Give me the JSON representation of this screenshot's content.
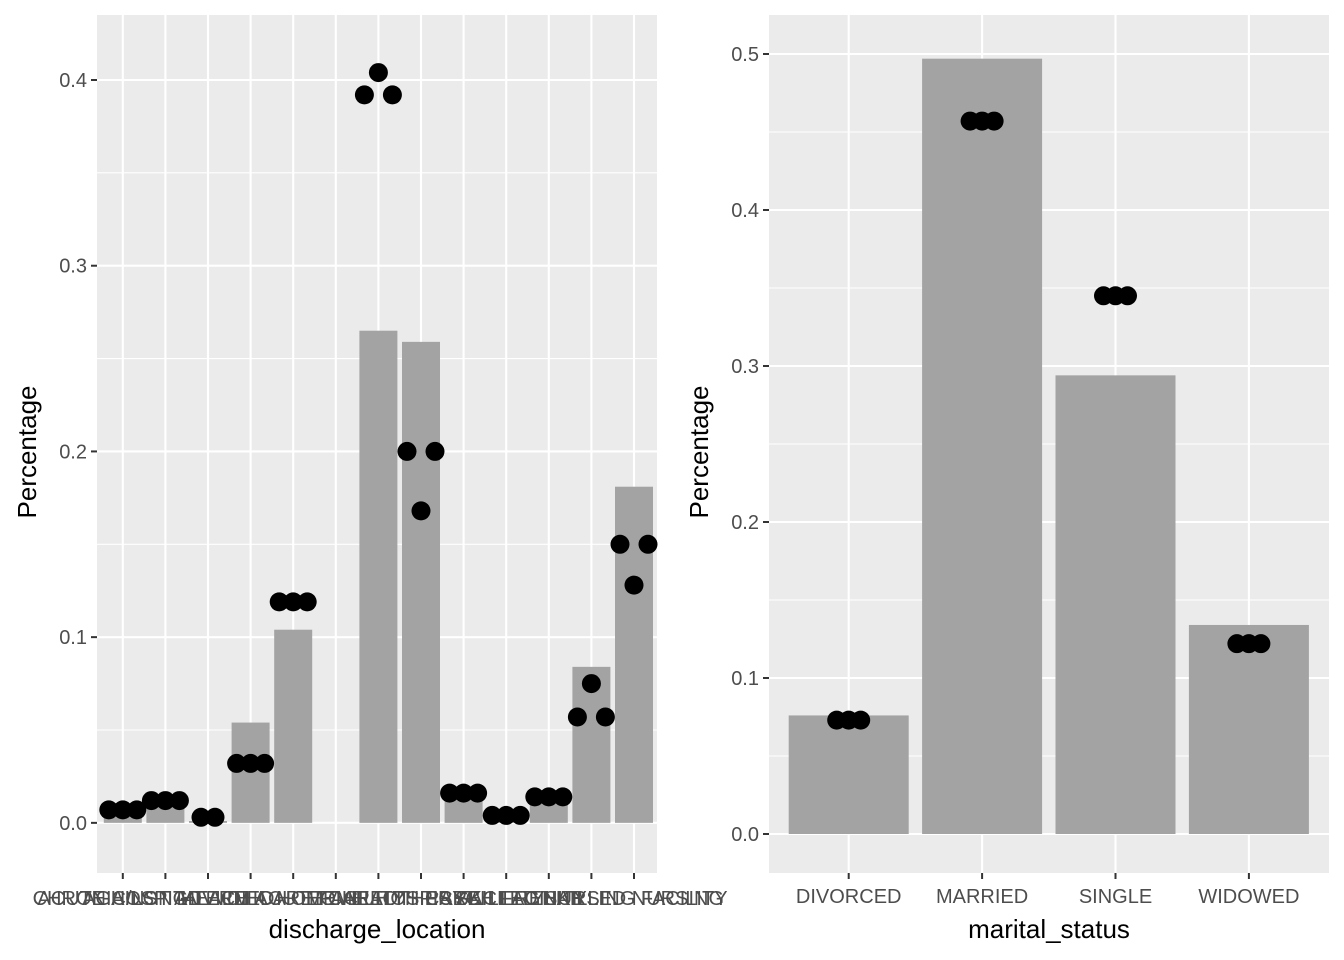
{
  "chart_data": [
    {
      "type": "bar",
      "xlabel": "discharge_location",
      "ylabel": "Percentage",
      "ylim": [
        -0.027,
        0.435
      ],
      "y_ticks": [
        0.0,
        0.1,
        0.2,
        0.3,
        0.4
      ],
      "y_tick_labels": [
        "0.0",
        "0.1",
        "0.2",
        "0.3",
        "0.4"
      ],
      "grid": true,
      "categories": [
        "ACUTE HOSPITAL",
        "AGAINST ADVICE",
        "CHRONIC/LONG TERM ACUTE CARE",
        "DIED",
        "HEALTHCARE FACILITY",
        "HOME",
        "HOME HEALTH CARE",
        "HOSPICE",
        "OTHER FACILITY",
        "PSYCH FACILITY",
        "REHAB",
        "SKILLED NURSING FACILITY",
        "SKILLED NURSING"
      ],
      "bar_values": [
        0.006,
        0.011,
        0.001,
        0.054,
        0.104,
        0.0,
        0.265,
        0.259,
        0.016,
        0.005,
        0.013,
        0.084,
        0.181
      ],
      "point_series": [
        [
          0.007,
          0.007,
          0.007
        ],
        [
          0.012,
          0.012,
          0.012
        ],
        [
          0.003,
          0.003
        ],
        [
          0.032,
          0.032,
          0.032
        ],
        [
          0.119,
          0.119,
          0.119
        ],
        [],
        [
          0.392,
          0.404,
          0.392
        ],
        [
          0.2,
          0.168,
          0.2
        ],
        [
          0.016,
          0.016,
          0.016
        ],
        [
          0.004,
          0.004,
          0.004
        ],
        [
          0.014,
          0.014,
          0.014
        ],
        [
          0.057,
          0.075,
          0.057
        ],
        [
          0.15,
          0.128,
          0.15
        ]
      ]
    },
    {
      "type": "bar",
      "xlabel": "marital_status",
      "ylabel": "Percentage",
      "ylim": [
        -0.025,
        0.525
      ],
      "y_ticks": [
        0.0,
        0.1,
        0.2,
        0.3,
        0.4,
        0.5
      ],
      "y_tick_labels": [
        "0.0",
        "0.1",
        "0.2",
        "0.3",
        "0.4",
        "0.5"
      ],
      "grid": true,
      "categories": [
        "DIVORCED",
        "MARRIED",
        "SINGLE",
        "WIDOWED"
      ],
      "bar_values": [
        0.076,
        0.497,
        0.294,
        0.134
      ],
      "point_series": [
        [
          0.073,
          0.073,
          0.073
        ],
        [
          0.457,
          0.457,
          0.457
        ],
        [
          0.345,
          0.345,
          0.345
        ],
        [
          0.122,
          0.122,
          0.122
        ]
      ]
    }
  ],
  "colors": {
    "panel_bg": "#ebebeb",
    "grid": "#ffffff",
    "bar": "#a3a3a3",
    "point": "#000000",
    "tick_text": "#4d4d4d",
    "tick_mark": "#333333"
  }
}
